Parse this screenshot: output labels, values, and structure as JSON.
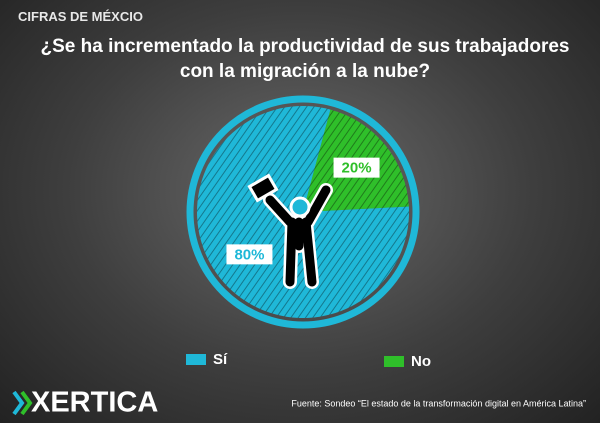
{
  "header": "CIFRAS DE MÉXCIO",
  "brand": "XERTICA",
  "source": "Fuente: Sondeo “El estado de la transformación digital en América Latina”",
  "chart_data": {
    "type": "pie",
    "title": "¿Se ha incrementado la productividad de sus trabajadores con la migración a la nube?",
    "categories": [
      "Sí",
      "No"
    ],
    "values": [
      80,
      20
    ],
    "value_labels": [
      "80%",
      "20%"
    ],
    "colors": [
      "#1fb8d8",
      "#2fbf2a"
    ]
  }
}
